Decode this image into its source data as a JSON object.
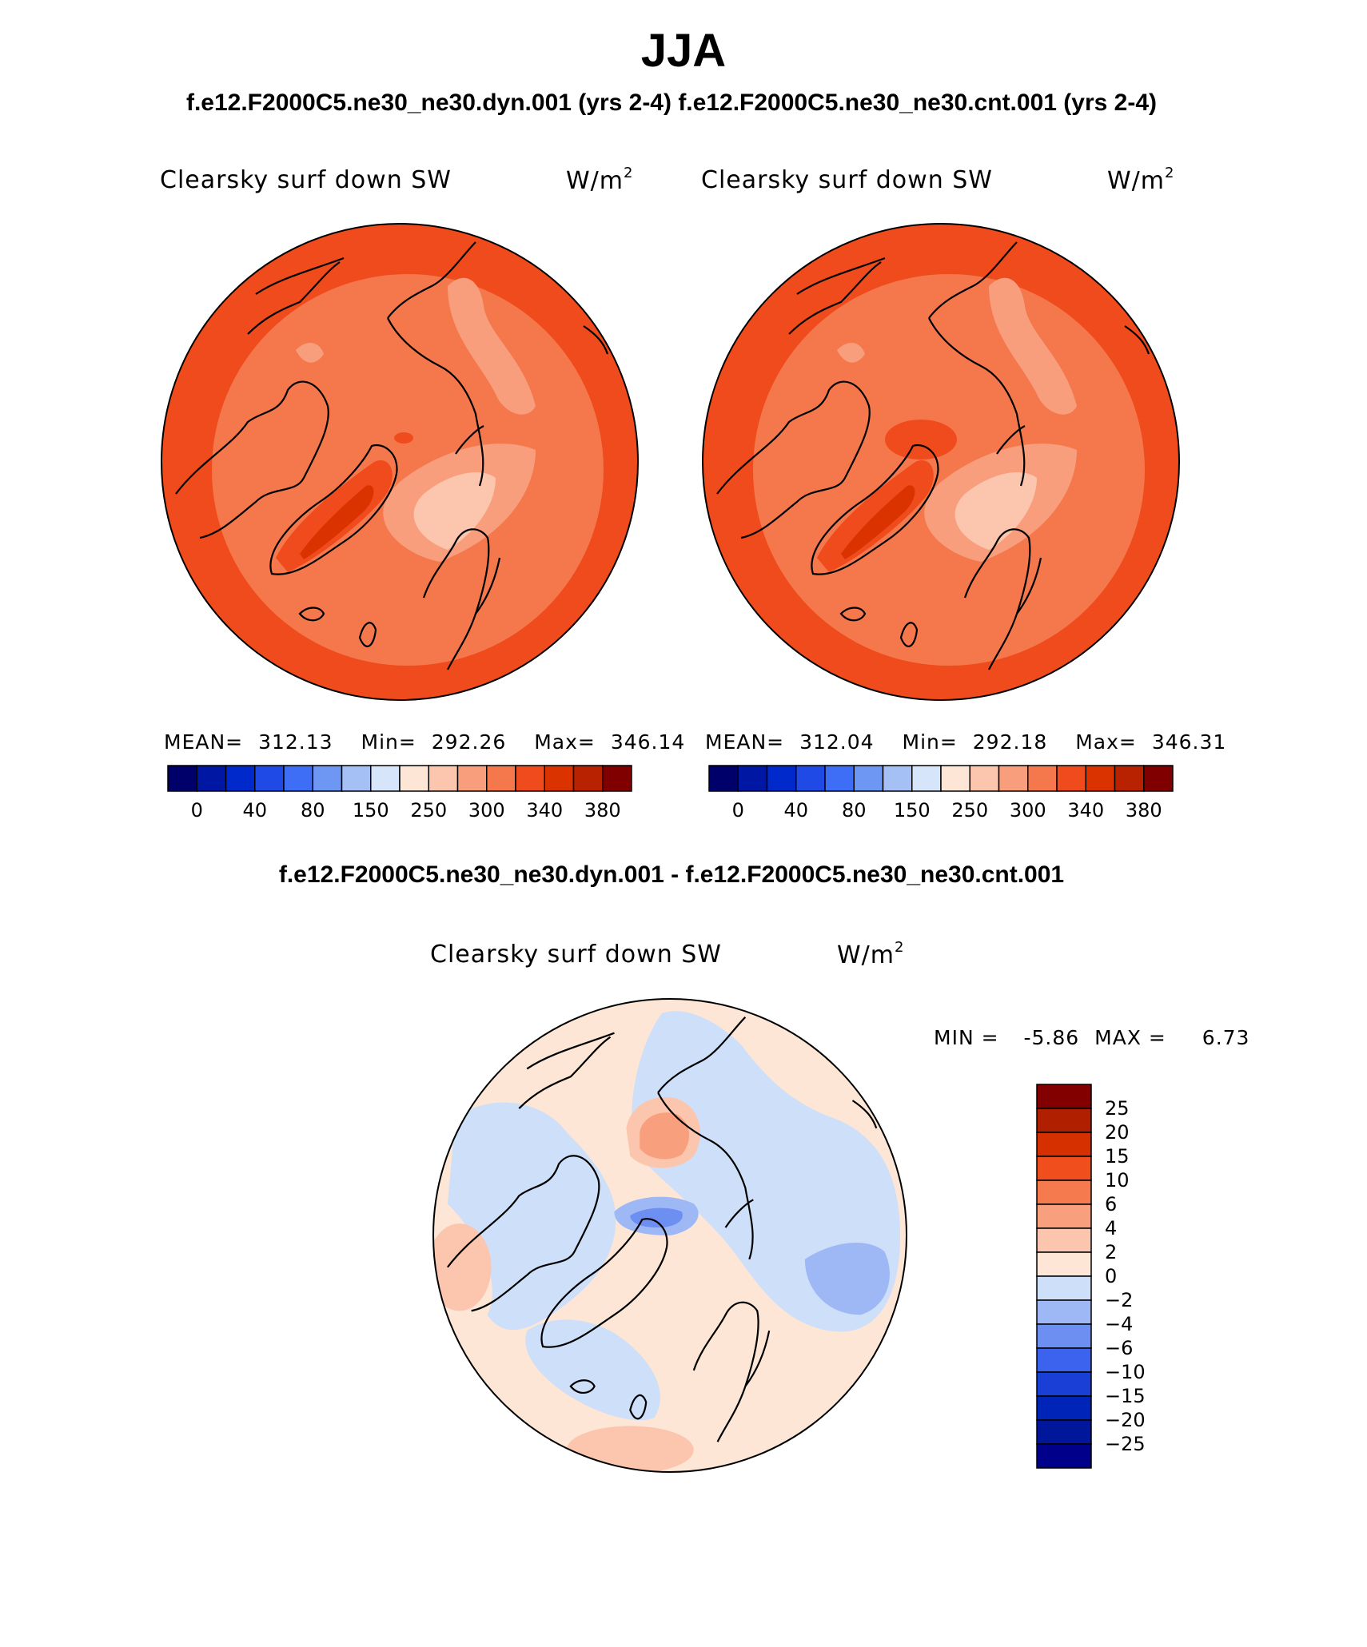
{
  "title": "JJA",
  "runs_title": "f.e12.F2000C5.ne30_ne30.dyn.001 (yrs 2-4)  f.e12.F2000C5.ne30_ne30.cnt.001 (yrs 2-4)",
  "diff_title": "f.e12.F2000C5.ne30_ne30.dyn.001 - f.e12.F2000C5.ne30_ne30.cnt.001",
  "colors": {
    "abs_scale": [
      "#00006b",
      "#0017a3",
      "#0029cc",
      "#1f4ae6",
      "#3d6ef5",
      "#6d97f2",
      "#a4c0f4",
      "#d6e5fa",
      "#fde6d5",
      "#fbc6ad",
      "#f89e7d",
      "#f5784d",
      "#f04b1d",
      "#db3300",
      "#b82200",
      "#800000"
    ],
    "diff_scale": [
      "#00008a",
      "#00179c",
      "#0024b8",
      "#1a3fd6",
      "#3b63ee",
      "#6d8ff2",
      "#9eb8f5",
      "#cddff9",
      "#fde6d5",
      "#fbc6ad",
      "#f8a07d",
      "#f57a4d",
      "#f04e1c",
      "#d63000",
      "#b01f00",
      "#820000"
    ],
    "coast": "#000000"
  },
  "chart_data": [
    {
      "type": "heatmap",
      "projection": "north polar stereographic",
      "title": "Clearsky surf down SW",
      "units": "W/m",
      "units_exponent": "2",
      "mean_label": "MEAN=",
      "mean": "312.13",
      "min_label": "Min=",
      "min": "292.26",
      "max_label": "Max=",
      "max": "346.14",
      "colorbar_ticks": [
        "0",
        "40",
        "80",
        "150",
        "250",
        "300",
        "340",
        "380"
      ],
      "levels": [
        0,
        20,
        40,
        60,
        80,
        100,
        150,
        200,
        250,
        275,
        300,
        320,
        340,
        360,
        380
      ]
    },
    {
      "type": "heatmap",
      "projection": "north polar stereographic",
      "title": "Clearsky surf down SW",
      "units": "W/m",
      "units_exponent": "2",
      "mean_label": "MEAN=",
      "mean": "312.04",
      "min_label": "Min=",
      "min": "292.18",
      "max_label": "Max=",
      "max": "346.31",
      "colorbar_ticks": [
        "0",
        "40",
        "80",
        "150",
        "250",
        "300",
        "340",
        "380"
      ],
      "levels": [
        0,
        20,
        40,
        60,
        80,
        100,
        150,
        200,
        250,
        275,
        300,
        320,
        340,
        360,
        380
      ]
    },
    {
      "type": "heatmap",
      "projection": "north polar stereographic",
      "title": "Clearsky surf down SW",
      "units": "W/m",
      "units_exponent": "2",
      "min_label": "MIN =",
      "min": "-5.86",
      "max_label": "MAX =",
      "max": "6.73",
      "colorbar_ticks": [
        "25",
        "20",
        "15",
        "10",
        "6",
        "4",
        "2",
        "0",
        "−2",
        "−4",
        "−6",
        "−10",
        "−15",
        "−20",
        "−25"
      ]
    }
  ]
}
